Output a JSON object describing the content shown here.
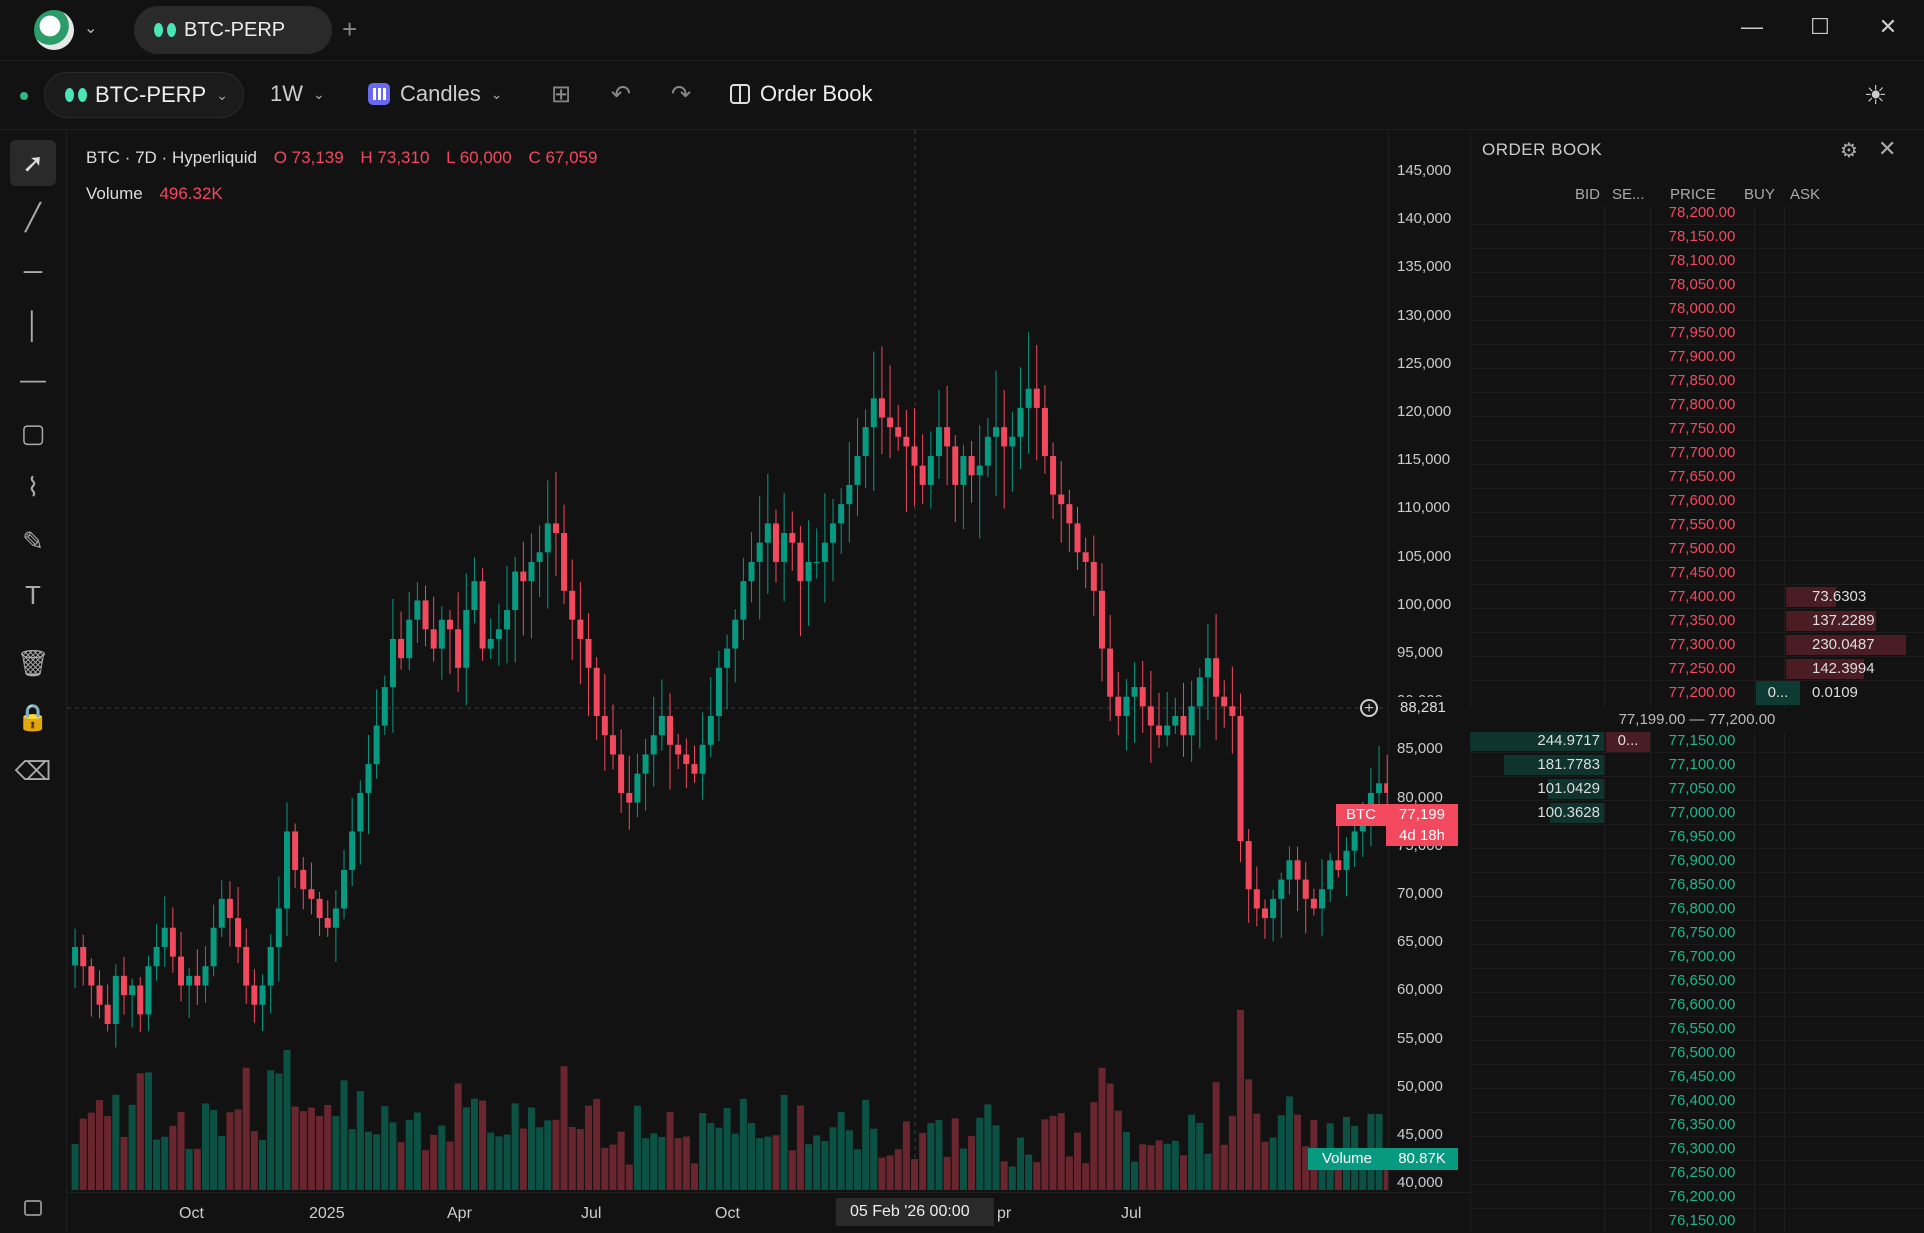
{
  "titlebar": {
    "tab_label": "BTC-PERP",
    "add_tab": "+",
    "minimize": "—",
    "maximize": "☐",
    "close": "✕"
  },
  "toolbar": {
    "symbol": "BTC-PERP",
    "interval": "1W",
    "chart_type": "Candles",
    "order_book_label": "Order Book",
    "undo": "↶",
    "redo": "↷",
    "indicators": "⊞",
    "theme": "☀"
  },
  "draw_tools": [
    {
      "name": "cursor-icon",
      "glyph": "➚"
    },
    {
      "name": "trend-line-icon",
      "glyph": "╱"
    },
    {
      "name": "horizontal-ray-icon",
      "glyph": "─"
    },
    {
      "name": "vertical-line-icon",
      "glyph": "│"
    },
    {
      "name": "horizontal-line-icon",
      "glyph": "—"
    },
    {
      "name": "rectangle-icon",
      "glyph": "▢"
    },
    {
      "name": "path-icon",
      "glyph": "⌇"
    },
    {
      "name": "brush-icon",
      "glyph": "✎"
    },
    {
      "name": "text-icon",
      "glyph": "T"
    },
    {
      "name": "trash-icon",
      "glyph": "🗑"
    },
    {
      "name": "lock-icon",
      "glyph": "🔒"
    },
    {
      "name": "eraser-icon",
      "glyph": "⌫"
    }
  ],
  "legend": {
    "instrument": "BTC · 7D · Hyperliquid",
    "open": "O 73,139",
    "high": "H 73,310",
    "low": "L 60,000",
    "close": "C 67,059",
    "volume_label": "Volume",
    "volume_value": "496.32K"
  },
  "price_axis": {
    "ticks": [
      "145,000",
      "140,000",
      "135,000",
      "130,000",
      "125,000",
      "120,000",
      "115,000",
      "110,000",
      "105,000",
      "100,000",
      "95,000",
      "90,000",
      "85,000",
      "80,000",
      "75,000",
      "70,000",
      "65,000",
      "60,000",
      "55,000",
      "50,000",
      "45,000",
      "40,000"
    ],
    "crosshair_price": "88,281",
    "last_price_tag": "BTC",
    "last_price": "77,199",
    "countdown": "4d 18h",
    "volume_tag": "Volume",
    "volume_last": "80.87K"
  },
  "time_axis": {
    "ticks": [
      "Oct",
      "2025",
      "Apr",
      "Jul",
      "Oct",
      "pr",
      "Jul"
    ],
    "crosshair_time": "05 Feb '26   00:00"
  },
  "colors": {
    "up": "#089981",
    "down": "#f2495f",
    "background": "#121212",
    "accent": "#48e5b5"
  },
  "chart_data": {
    "type": "candlestick",
    "interval": "1W",
    "ylim": [
      40000,
      147000
    ],
    "price_candles_close": [
      64000,
      62000,
      60000,
      58000,
      56000,
      61000,
      59000,
      60000,
      57000,
      62000,
      64000,
      66000,
      63000,
      60000,
      61000,
      60000,
      62000,
      66000,
      69000,
      67000,
      64000,
      60000,
      58000,
      60000,
      64000,
      68000,
      76000,
      72000,
      70000,
      69000,
      67000,
      66000,
      68000,
      72000,
      76000,
      80000,
      83000,
      87000,
      91000,
      96000,
      94000,
      98000,
      100000,
      97000,
      95000,
      98000,
      97000,
      93000,
      99000,
      102000,
      95000,
      96000,
      97000,
      99000,
      103000,
      102000,
      104000,
      105000,
      108000,
      107000,
      101000,
      98000,
      96000,
      93000,
      88000,
      86000,
      84000,
      80000,
      79000,
      82000,
      84000,
      86000,
      88000,
      85000,
      84000,
      83000,
      82000,
      85000,
      88000,
      93000,
      95000,
      98000,
      102000,
      104000,
      106000,
      108000,
      104000,
      107000,
      106000,
      102000,
      104000,
      104000,
      106000,
      108000,
      110000,
      112000,
      115000,
      118000,
      121000,
      119000,
      118000,
      117000,
      116000,
      114000,
      112000,
      115000,
      118000,
      116000,
      112000,
      115000,
      113000,
      114000,
      117000,
      118000,
      116000,
      117000,
      120000,
      122000,
      120000,
      115000,
      111000,
      110000,
      108000,
      105000,
      104000,
      101000,
      95000,
      90000,
      88000,
      90000,
      91000,
      89000,
      87000,
      86000,
      87000,
      88000,
      86000,
      89000,
      92000,
      94000,
      90000,
      89000,
      88000,
      75000,
      70000,
      68000,
      67000,
      69000,
      71000,
      73000,
      71000,
      69000,
      68000,
      70000,
      73000,
      72000,
      74000,
      76000,
      78000,
      80000,
      81000,
      80000,
      78000,
      77000,
      76000,
      73000,
      69000,
      66000,
      65000,
      62000,
      63000,
      65000,
      62000,
      61000,
      63000,
      65000,
      66000,
      66000,
      65000,
      64000,
      66000,
      69000,
      73000,
      78000,
      79000,
      78000,
      77000,
      77199
    ],
    "volume": "bars beneath price; last value 80.87K"
  },
  "order_book": {
    "title": "ORDER BOOK",
    "headers": {
      "bid": "BID",
      "sell": "SE...",
      "price": "PRICE",
      "buy": "BUY",
      "ask": "ASK"
    },
    "spread_text": "77,199.00 — 77,200.00",
    "asks": [
      {
        "price": "78,200.00",
        "ask": "",
        "buy": ""
      },
      {
        "price": "78,150.00",
        "ask": "",
        "buy": ""
      },
      {
        "price": "78,100.00",
        "ask": "",
        "buy": ""
      },
      {
        "price": "78,050.00",
        "ask": "",
        "buy": ""
      },
      {
        "price": "78,000.00",
        "ask": "",
        "buy": ""
      },
      {
        "price": "77,950.00",
        "ask": "",
        "buy": ""
      },
      {
        "price": "77,900.00",
        "ask": "",
        "buy": ""
      },
      {
        "price": "77,850.00",
        "ask": "",
        "buy": ""
      },
      {
        "price": "77,800.00",
        "ask": "",
        "buy": ""
      },
      {
        "price": "77,750.00",
        "ask": "",
        "buy": ""
      },
      {
        "price": "77,700.00",
        "ask": "",
        "buy": ""
      },
      {
        "price": "77,650.00",
        "ask": "",
        "buy": ""
      },
      {
        "price": "77,600.00",
        "ask": "",
        "buy": ""
      },
      {
        "price": "77,550.00",
        "ask": "",
        "buy": ""
      },
      {
        "price": "77,500.00",
        "ask": "",
        "buy": ""
      },
      {
        "price": "77,450.00",
        "ask": "",
        "buy": ""
      },
      {
        "price": "77,400.00",
        "ask": "73.6303",
        "buy": ""
      },
      {
        "price": "77,350.00",
        "ask": "137.2289",
        "buy": ""
      },
      {
        "price": "77,300.00",
        "ask": "230.0487",
        "buy": ""
      },
      {
        "price": "77,250.00",
        "ask": "142.3994",
        "buy": ""
      },
      {
        "price": "77,200.00",
        "ask": "0.0109",
        "buy": "0..."
      }
    ],
    "bids": [
      {
        "price": "77,150.00",
        "bid": "244.9717",
        "sell": "0..."
      },
      {
        "price": "77,100.00",
        "bid": "181.7783",
        "sell": ""
      },
      {
        "price": "77,050.00",
        "bid": "101.0429",
        "sell": ""
      },
      {
        "price": "77,000.00",
        "bid": "100.3628",
        "sell": ""
      },
      {
        "price": "76,950.00",
        "bid": "",
        "sell": ""
      },
      {
        "price": "76,900.00",
        "bid": "",
        "sell": ""
      },
      {
        "price": "76,850.00",
        "bid": "",
        "sell": ""
      },
      {
        "price": "76,800.00",
        "bid": "",
        "sell": ""
      },
      {
        "price": "76,750.00",
        "bid": "",
        "sell": ""
      },
      {
        "price": "76,700.00",
        "bid": "",
        "sell": ""
      },
      {
        "price": "76,650.00",
        "bid": "",
        "sell": ""
      },
      {
        "price": "76,600.00",
        "bid": "",
        "sell": ""
      },
      {
        "price": "76,550.00",
        "bid": "",
        "sell": ""
      },
      {
        "price": "76,500.00",
        "bid": "",
        "sell": ""
      },
      {
        "price": "76,450.00",
        "bid": "",
        "sell": ""
      },
      {
        "price": "76,400.00",
        "bid": "",
        "sell": ""
      },
      {
        "price": "76,350.00",
        "bid": "",
        "sell": ""
      },
      {
        "price": "76,300.00",
        "bid": "",
        "sell": ""
      },
      {
        "price": "76,250.00",
        "bid": "",
        "sell": ""
      },
      {
        "price": "76,200.00",
        "bid": "",
        "sell": ""
      },
      {
        "price": "76,150.00",
        "bid": "",
        "sell": ""
      }
    ]
  }
}
